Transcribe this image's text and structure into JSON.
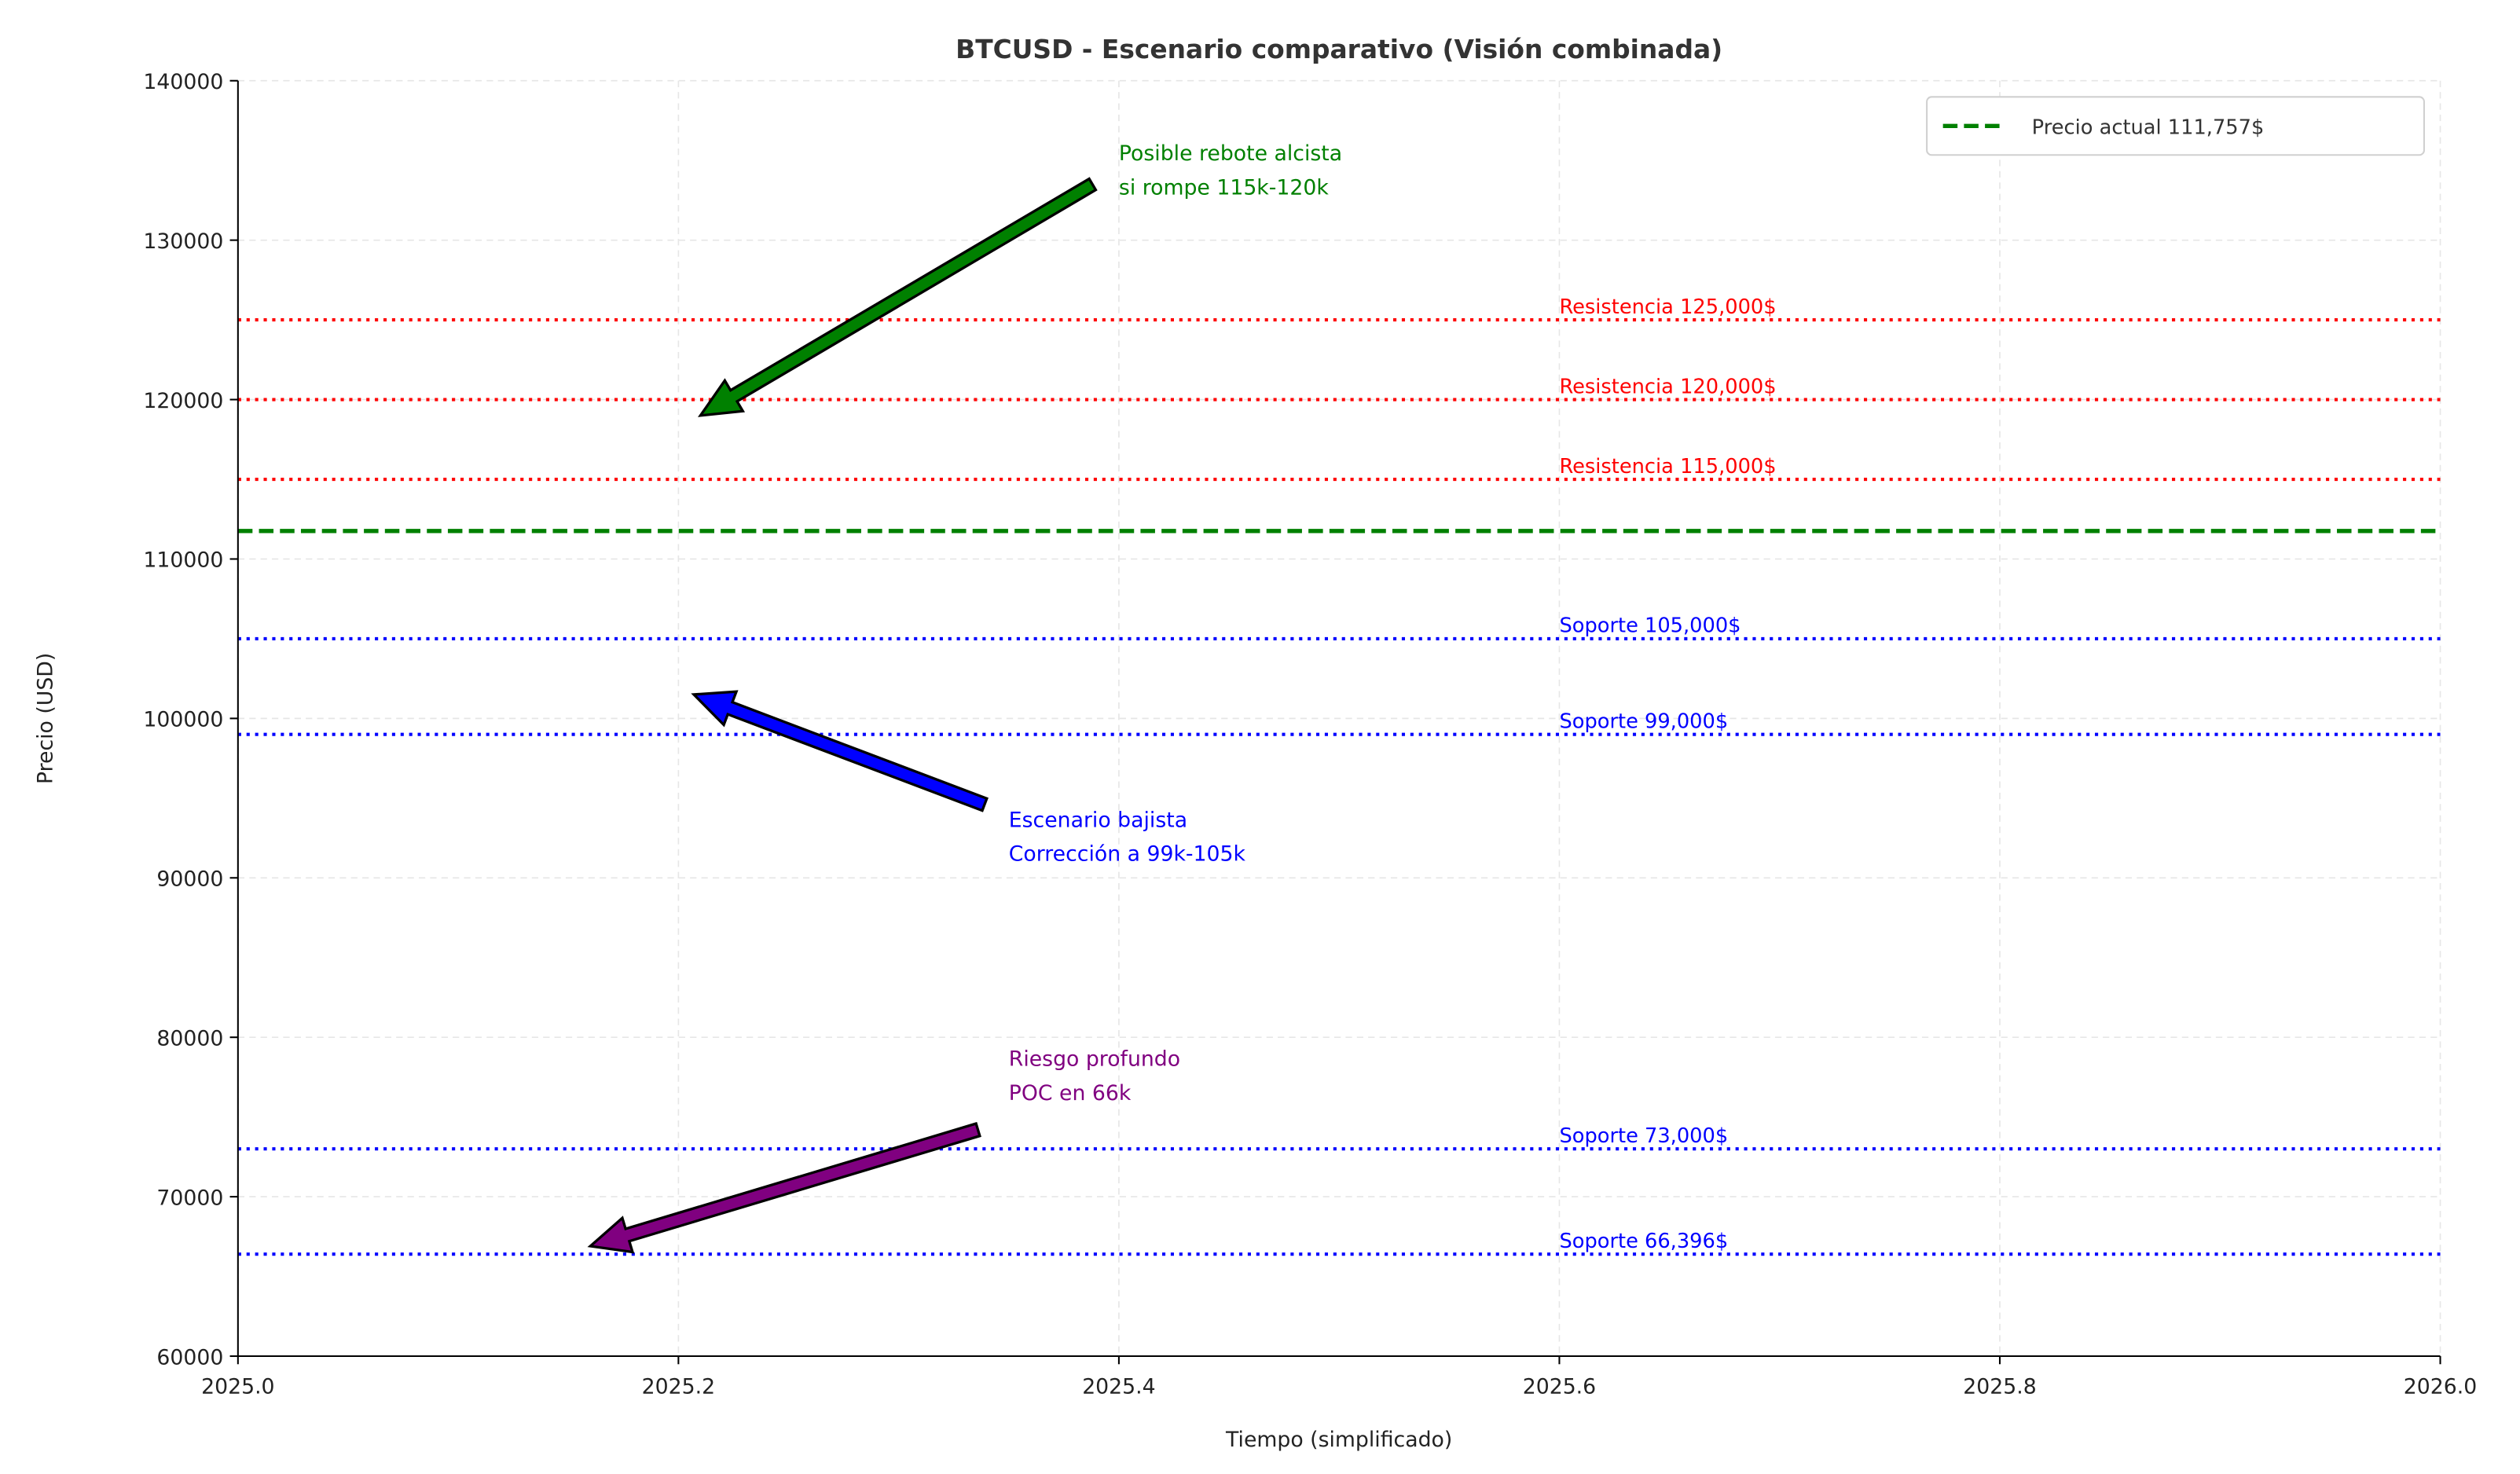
{
  "chart_data": {
    "type": "line",
    "title": "BTCUSD - Escenario comparativo (Visión combinada)",
    "xlabel": "Tiempo (simplificado)",
    "ylabel": "Precio (USD)",
    "xlim": [
      2025.0,
      2026.0
    ],
    "ylim": [
      60000,
      140000
    ],
    "xticks": [
      2025.0,
      2025.2,
      2025.4,
      2025.6,
      2025.8,
      2026.0
    ],
    "xtick_labels": [
      "2025.0",
      "2025.2",
      "2025.4",
      "2025.6",
      "2025.8",
      "2026.0"
    ],
    "yticks": [
      60000,
      70000,
      80000,
      90000,
      100000,
      110000,
      120000,
      130000,
      140000
    ],
    "ytick_labels": [
      "60000",
      "70000",
      "80000",
      "90000",
      "100000",
      "110000",
      "120000",
      "130000",
      "140000"
    ],
    "grid": true,
    "legend": {
      "placement": "upper-right",
      "entries": [
        {
          "label": "Precio actual 111,757$",
          "color": "#008000",
          "style": "dashed"
        }
      ]
    },
    "current_price": {
      "value": 111757,
      "color": "#008000",
      "style": "dashed"
    },
    "levels": [
      {
        "value": 125000,
        "label": "Resistencia 125,000$",
        "color": "#ff0000",
        "style": "dotted"
      },
      {
        "value": 120000,
        "label": "Resistencia 120,000$",
        "color": "#ff0000",
        "style": "dotted"
      },
      {
        "value": 115000,
        "label": "Resistencia 115,000$",
        "color": "#ff0000",
        "style": "dotted"
      },
      {
        "value": 105000,
        "label": "Soporte 105,000$",
        "color": "#0000ff",
        "style": "dotted"
      },
      {
        "value": 99000,
        "label": "Soporte 99,000$",
        "color": "#0000ff",
        "style": "dotted"
      },
      {
        "value": 73000,
        "label": "Soporte 73,000$",
        "color": "#0000ff",
        "style": "dotted"
      },
      {
        "value": 66396,
        "label": "Soporte 66,396$",
        "color": "#0000ff",
        "style": "dotted"
      }
    ],
    "level_label_x": 2025.6,
    "annotations": [
      {
        "lines": [
          "Posible rebote alcista",
          "si rompe 115k-120k"
        ],
        "color": "#008000",
        "text_at": [
          2025.4,
          135000
        ],
        "arrow_from": [
          2025.388,
          133500
        ],
        "arrow_to": [
          2025.21,
          119000
        ]
      },
      {
        "lines": [
          "Escenario bajista",
          "Corrección a 99k-105k"
        ],
        "color": "#0000ff",
        "text_at": [
          2025.35,
          93200
        ],
        "arrow_from": [
          2025.339,
          94600
        ],
        "arrow_to": [
          2025.207,
          101500
        ]
      },
      {
        "lines": [
          "Riesgo profundo",
          "POC en 66k"
        ],
        "color": "#800080",
        "text_at": [
          2025.35,
          78200
        ],
        "arrow_from": [
          2025.336,
          74200
        ],
        "arrow_to": [
          2025.16,
          66900
        ]
      }
    ]
  }
}
